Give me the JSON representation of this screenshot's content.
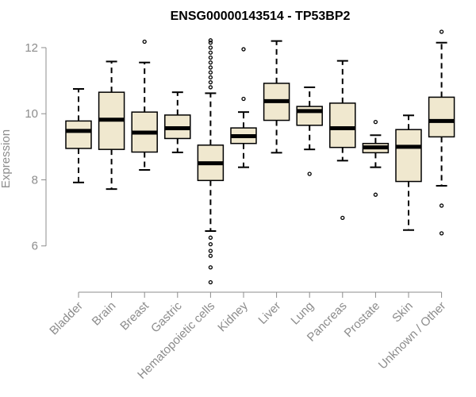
{
  "chart_data": {
    "type": "boxplot",
    "title": "ENSG00000143514 - TP53BP2",
    "xlabel": "",
    "ylabel": "Expression",
    "ylim": [
      4.6,
      12.6
    ],
    "yticks": [
      6,
      8,
      10,
      12
    ],
    "box_color": "#f0e8cf",
    "categories": [
      "Bladder",
      "Brain",
      "Breast",
      "Gastric",
      "Hematopoietic cells",
      "Kidney",
      "Liver",
      "Lung",
      "Pancreas",
      "Prostate",
      "Skin",
      "Unknown / Other"
    ],
    "boxes": [
      {
        "whisker_low": 7.92,
        "q1": 8.95,
        "median": 9.48,
        "q3": 9.78,
        "whisker_high": 10.75,
        "outliers": []
      },
      {
        "whisker_low": 7.72,
        "q1": 8.92,
        "median": 9.82,
        "q3": 10.65,
        "whisker_high": 11.58,
        "outliers": []
      },
      {
        "whisker_low": 8.3,
        "q1": 8.84,
        "median": 9.43,
        "q3": 10.05,
        "whisker_high": 11.55,
        "outliers": [
          12.18
        ]
      },
      {
        "whisker_low": 8.83,
        "q1": 9.25,
        "median": 9.56,
        "q3": 9.96,
        "whisker_high": 10.65,
        "outliers": []
      },
      {
        "whisker_low": 6.45,
        "q1": 7.98,
        "median": 8.5,
        "q3": 9.05,
        "whisker_high": 10.62,
        "outliers": [
          4.9,
          5.35,
          5.7,
          5.85,
          6.05,
          6.25,
          10.8,
          10.95,
          11.1,
          11.25,
          11.4,
          11.55,
          11.7,
          11.85,
          12.0,
          12.15,
          12.22
        ]
      },
      {
        "whisker_low": 8.38,
        "q1": 9.1,
        "median": 9.32,
        "q3": 9.57,
        "whisker_high": 10.05,
        "outliers": [
          10.45,
          11.95
        ]
      },
      {
        "whisker_low": 8.82,
        "q1": 9.8,
        "median": 10.38,
        "q3": 10.92,
        "whisker_high": 12.2,
        "outliers": []
      },
      {
        "whisker_low": 8.92,
        "q1": 9.65,
        "median": 10.08,
        "q3": 10.22,
        "whisker_high": 10.8,
        "outliers": [
          8.18
        ]
      },
      {
        "whisker_low": 8.58,
        "q1": 8.98,
        "median": 9.56,
        "q3": 10.32,
        "whisker_high": 11.6,
        "outliers": [
          6.85
        ]
      },
      {
        "whisker_low": 8.38,
        "q1": 8.82,
        "median": 8.98,
        "q3": 9.1,
        "whisker_high": 9.35,
        "outliers": [
          7.55,
          9.75
        ]
      },
      {
        "whisker_low": 6.48,
        "q1": 7.95,
        "median": 9.0,
        "q3": 9.52,
        "whisker_high": 9.95,
        "outliers": []
      },
      {
        "whisker_low": 7.82,
        "q1": 9.3,
        "median": 9.78,
        "q3": 10.5,
        "whisker_high": 12.15,
        "outliers": [
          6.38,
          7.22,
          12.48
        ]
      }
    ]
  }
}
